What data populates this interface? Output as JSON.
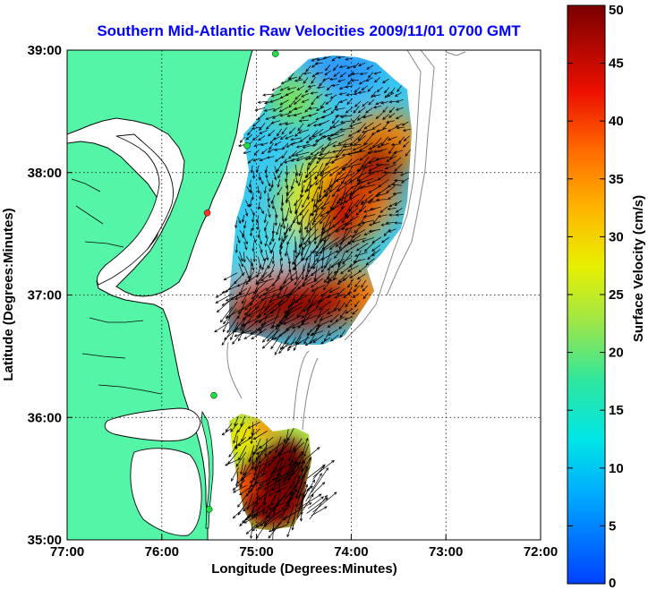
{
  "chart_data": {
    "type": "heatmap",
    "title": "Southern Mid-Atlantic Raw Velocities 2009/11/01 0700 GMT",
    "xlabel": "Longitude (Degrees:Minutes)",
    "ylabel": "Latitude (Degrees:Minutes)",
    "xlim": [
      -77,
      -72
    ],
    "ylim": [
      35,
      39
    ],
    "x_ticks": [
      "77:00",
      "76:00",
      "75:00",
      "74:00",
      "73:00",
      "72:00"
    ],
    "y_ticks": [
      "35:00",
      "36:00",
      "37:00",
      "38:00",
      "39:00"
    ],
    "grid": true,
    "colorbar": {
      "label": "Surface Velocity (cm/s)",
      "range": [
        0,
        50
      ],
      "ticks": [
        "0",
        "5",
        "10",
        "15",
        "20",
        "25",
        "30",
        "35",
        "40",
        "45",
        "50"
      ]
    },
    "hotspots": [
      {
        "lon": -74.25,
        "lat": 37.55,
        "value": 48
      },
      {
        "lon": -74.05,
        "lat": 38.05,
        "value": 46
      },
      {
        "lon": -74.65,
        "lat": 36.95,
        "value": 49
      },
      {
        "lon": -75.05,
        "lat": 36.9,
        "value": 47
      },
      {
        "lon": -74.7,
        "lat": 35.3,
        "value": 50
      },
      {
        "lon": -74.85,
        "lat": 35.65,
        "value": 44
      },
      {
        "lon": -74.85,
        "lat": 38.6,
        "value": 18
      }
    ],
    "stations": [
      {
        "lon": -74.8,
        "lat": 38.97
      },
      {
        "lon": -75.1,
        "lat": 38.22
      },
      {
        "lon": -75.52,
        "lat": 37.67
      },
      {
        "lon": -75.45,
        "lat": 36.18
      },
      {
        "lon": -75.5,
        "lat": 35.25
      }
    ]
  },
  "colors": {
    "land": "#55f5a8",
    "coast": "#0a0a0a",
    "arrow": "#000000",
    "grid": "#000000",
    "station": "#22dd44",
    "station_red": "#ff3322",
    "title": "#0000ff"
  }
}
